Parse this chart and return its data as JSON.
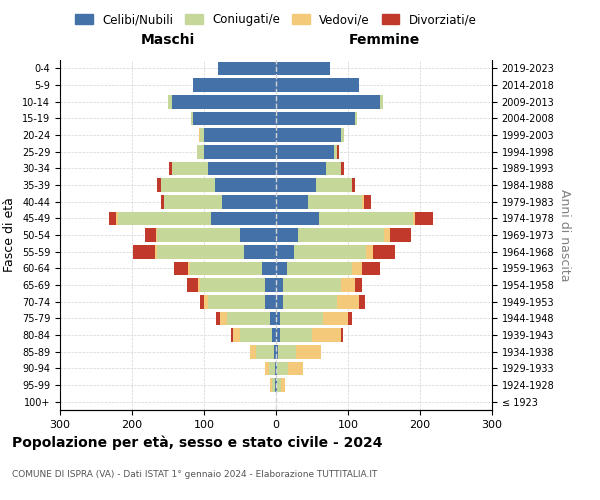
{
  "age_groups": [
    "100+",
    "95-99",
    "90-94",
    "85-89",
    "80-84",
    "75-79",
    "70-74",
    "65-69",
    "60-64",
    "55-59",
    "50-54",
    "45-49",
    "40-44",
    "35-39",
    "30-34",
    "25-29",
    "20-24",
    "15-19",
    "10-14",
    "5-9",
    "0-4"
  ],
  "birth_years": [
    "≤ 1923",
    "1924-1928",
    "1929-1933",
    "1934-1938",
    "1939-1943",
    "1944-1948",
    "1949-1953",
    "1954-1958",
    "1959-1963",
    "1964-1968",
    "1969-1973",
    "1974-1978",
    "1979-1983",
    "1984-1988",
    "1989-1993",
    "1994-1998",
    "1999-2003",
    "2004-2008",
    "2009-2013",
    "2014-2018",
    "2019-2023"
  ],
  "male": {
    "celibi": [
      0,
      2,
      2,
      3,
      5,
      8,
      15,
      15,
      20,
      45,
      50,
      90,
      75,
      85,
      95,
      100,
      100,
      115,
      145,
      115,
      80
    ],
    "coniugati": [
      0,
      4,
      8,
      25,
      45,
      60,
      80,
      90,
      100,
      120,
      115,
      130,
      80,
      75,
      50,
      10,
      5,
      3,
      5,
      0,
      0
    ],
    "vedovi": [
      0,
      2,
      5,
      8,
      10,
      10,
      5,
      3,
      2,
      3,
      2,
      2,
      0,
      0,
      0,
      0,
      2,
      0,
      0,
      0,
      0
    ],
    "divorziati": [
      0,
      0,
      0,
      0,
      2,
      5,
      5,
      15,
      20,
      30,
      15,
      10,
      5,
      5,
      3,
      0,
      0,
      0,
      0,
      0,
      0
    ]
  },
  "female": {
    "nubili": [
      0,
      2,
      2,
      3,
      5,
      5,
      10,
      10,
      15,
      25,
      30,
      60,
      45,
      55,
      70,
      80,
      90,
      110,
      145,
      115,
      75
    ],
    "coniugate": [
      0,
      5,
      15,
      25,
      45,
      60,
      75,
      80,
      90,
      100,
      120,
      130,
      75,
      50,
      20,
      5,
      5,
      2,
      3,
      0,
      0
    ],
    "vedove": [
      0,
      5,
      20,
      35,
      40,
      35,
      30,
      20,
      15,
      10,
      8,
      3,
      2,
      0,
      0,
      0,
      0,
      0,
      0,
      0,
      0
    ],
    "divorziate": [
      0,
      0,
      0,
      0,
      3,
      5,
      8,
      10,
      25,
      30,
      30,
      25,
      10,
      5,
      5,
      2,
      0,
      0,
      0,
      0,
      0
    ]
  },
  "colors": {
    "celibi": "#4472a8",
    "coniugati": "#c5d89a",
    "vedovi": "#f5c97a",
    "divorziati": "#c0392b"
  },
  "xlim": 300,
  "title": "Popolazione per età, sesso e stato civile - 2024",
  "subtitle": "COMUNE DI ISPRA (VA) - Dati ISTAT 1° gennaio 2024 - Elaborazione TUTTITALIA.IT",
  "ylabel_left": "Fasce di età",
  "ylabel_right": "Anni di nascita",
  "xlabel_left": "Maschi",
  "xlabel_right": "Femmine",
  "legend_labels": [
    "Celibi/Nubili",
    "Coniugati/e",
    "Vedovi/e",
    "Divorziati/e"
  ]
}
